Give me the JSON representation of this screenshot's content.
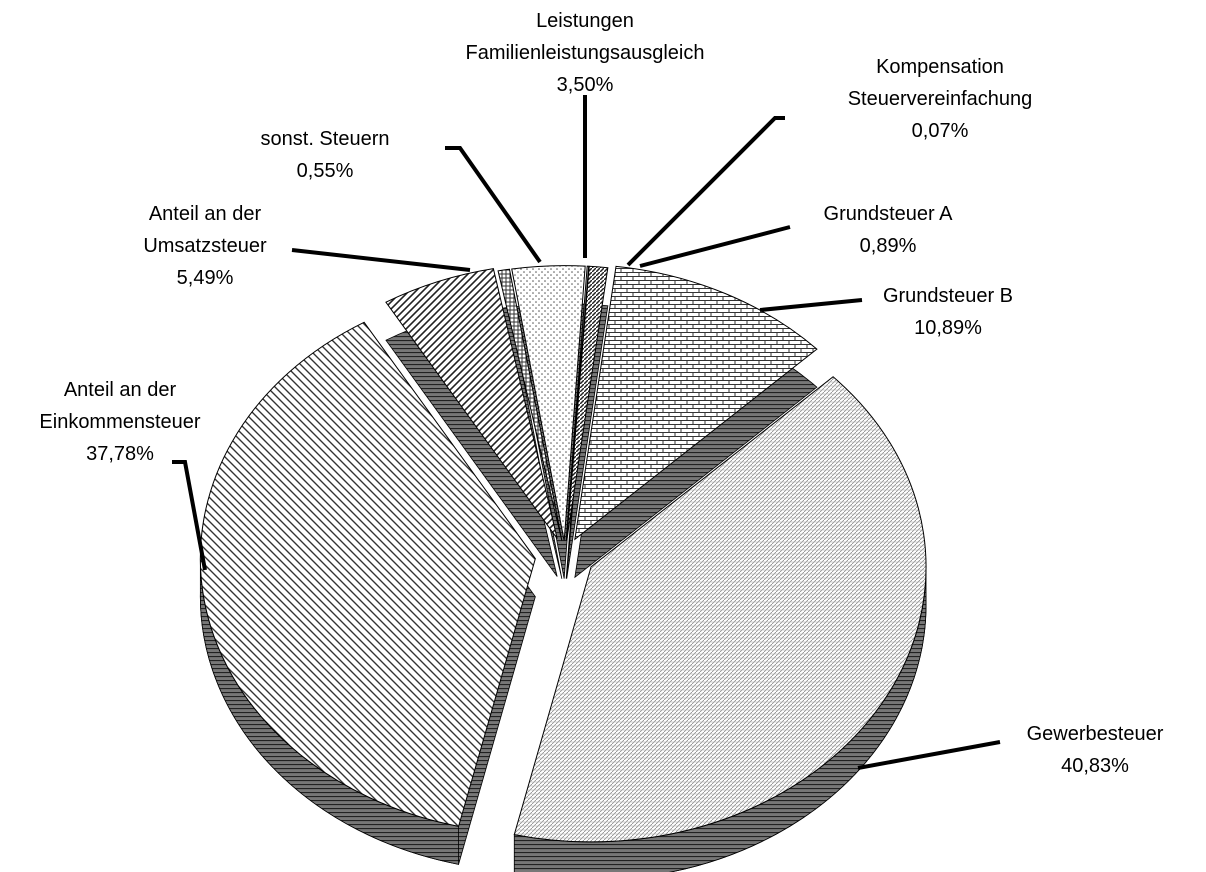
{
  "chart_data": {
    "type": "pie",
    "categories": [
      "Leistungen\nFamilienleistungsausgleich",
      "Kompensation\nSteuervereinfachung",
      "Grundsteuer A",
      "Grundsteuer B",
      "Gewerbesteuer",
      "Anteil an der\nEinkommensteuer",
      "Anteil an der\nUmsatzsteuer",
      "sonst. Steuern"
    ],
    "values": [
      3.5,
      0.07,
      0.89,
      10.89,
      40.83,
      37.78,
      5.49,
      0.55
    ],
    "value_labels": [
      "3,50%",
      "0,07%",
      "0,89%",
      "10,89%",
      "40,83%",
      "37,78%",
      "5,49%",
      "0,55%"
    ]
  }
}
